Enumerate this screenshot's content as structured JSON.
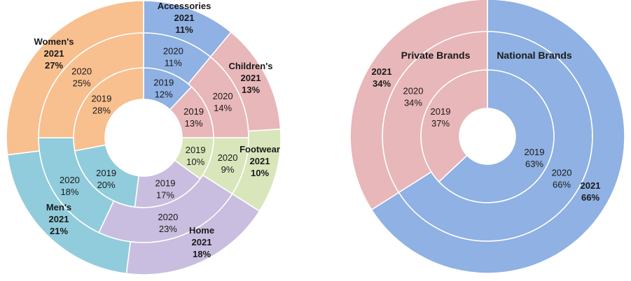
{
  "chart_data": [
    {
      "type": "pie",
      "subtype": "multi-ring donut",
      "rings": [
        "2019",
        "2020",
        "2021"
      ],
      "ring_order": "inner-to-outer",
      "start_angle_deg": 0,
      "direction": "clockwise from 12 o'clock",
      "categories": [
        "Accessories",
        "Children's",
        "Footwear",
        "Home",
        "Men's",
        "Women's"
      ],
      "series": [
        {
          "year": "2019",
          "year_label": "2019",
          "values": [
            12,
            13,
            10,
            17,
            20,
            28
          ],
          "labels": [
            "12%",
            "13%",
            "10%",
            "17%",
            "20%",
            "28%"
          ]
        },
        {
          "year": "2020",
          "year_label": "2020",
          "values": [
            11,
            14,
            9,
            23,
            18,
            25
          ],
          "labels": [
            "11%",
            "14%",
            "9%",
            "23%",
            "18%",
            "25%"
          ]
        },
        {
          "year": "2021",
          "year_label": "2021",
          "values": [
            11,
            13,
            10,
            18,
            21,
            27
          ],
          "labels": [
            "11%",
            "13%",
            "10%",
            "18%",
            "21%",
            "27%"
          ]
        }
      ],
      "colors": {
        "Accessories": "#8fb1e3",
        "Children's": "#e8b7b9",
        "Footwear": "#d9e5bb",
        "Home": "#c9bedf",
        "Men's": "#91ccdc",
        "Women's": "#f8bf8f"
      }
    },
    {
      "type": "pie",
      "subtype": "multi-ring donut",
      "rings": [
        "2019",
        "2020",
        "2021"
      ],
      "ring_order": "inner-to-outer",
      "start_angle_deg": 0,
      "direction": "clockwise from 12 o'clock",
      "categories": [
        "National Brands",
        "Private Brands"
      ],
      "series": [
        {
          "year": "2019",
          "year_label": "2019",
          "values": [
            63,
            37
          ],
          "labels": [
            "63%",
            "37%"
          ]
        },
        {
          "year": "2020",
          "year_label": "2020",
          "values": [
            66,
            34
          ],
          "labels": [
            "66%",
            "34%"
          ]
        },
        {
          "year": "2021",
          "year_label": "2021",
          "values": [
            66,
            34
          ],
          "labels": [
            "66%",
            "34%"
          ]
        }
      ],
      "colors": {
        "National Brands": "#8fb1e3",
        "Private Brands": "#e8b7b9"
      }
    }
  ]
}
